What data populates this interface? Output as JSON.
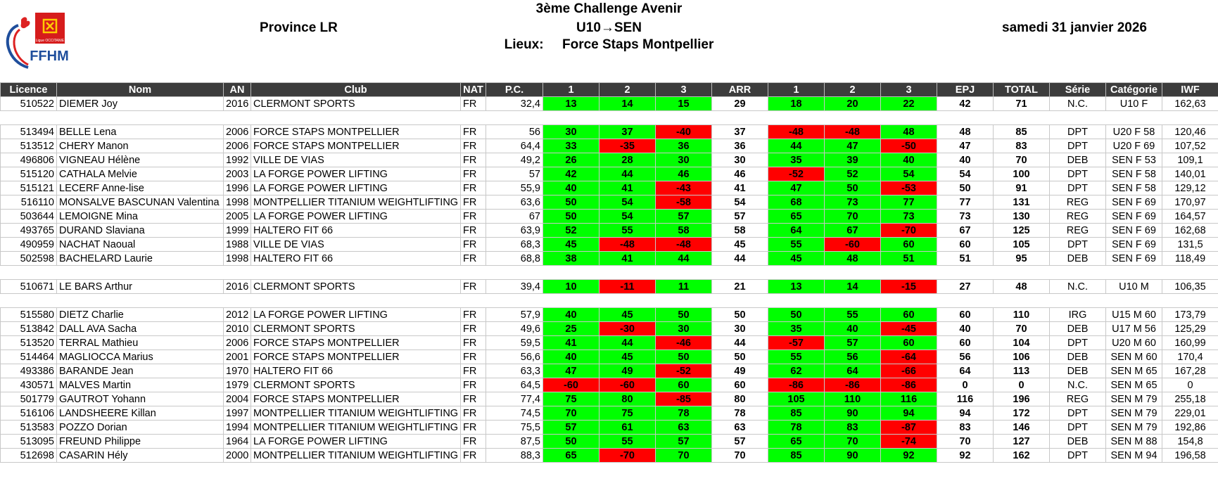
{
  "header": {
    "title": "3ème Challenge Avenir",
    "category_range": "U10→SEN",
    "location_label": "Lieux:",
    "location": "Force Staps Montpellier",
    "province": "Province LR",
    "date": "samedi 31 janvier 2026",
    "logo_text": "FFHM",
    "logo_sub": "Ligue OCCITANIE"
  },
  "columns": [
    "Licence",
    "Nom",
    "AN",
    "Club",
    "NAT",
    "P.C.",
    "1",
    "2",
    "3",
    "ARR",
    "1",
    "2",
    "3",
    "EPJ",
    "TOTAL",
    "Série",
    "Catégorie",
    "IWF"
  ],
  "colors": {
    "good": "#00ff00",
    "fail": "#ff0000",
    "header_bg": "#3c3c3c"
  },
  "rows": [
    {
      "lic": "510522",
      "nom": "DIEMER Joy",
      "an": "2016",
      "club": "CLERMONT SPORTS",
      "nat": "FR",
      "pc": "32,4",
      "a": [
        "13",
        "14",
        "15"
      ],
      "arr": "29",
      "e": [
        "18",
        "20",
        "22"
      ],
      "epj": "42",
      "total": "71",
      "serie": "N.C.",
      "cat": "U10 F",
      "iwf": "162,63"
    },
    null,
    {
      "lic": "513494",
      "nom": "BELLE Lena",
      "an": "2006",
      "club": "FORCE STAPS MONTPELLIER",
      "nat": "FR",
      "pc": "56",
      "a": [
        "30",
        "37",
        "-40"
      ],
      "arr": "37",
      "e": [
        "-48",
        "-48",
        "48"
      ],
      "epj": "48",
      "total": "85",
      "serie": "DPT",
      "cat": "U20 F 58",
      "iwf": "120,46"
    },
    {
      "lic": "513512",
      "nom": "CHERY Manon",
      "an": "2006",
      "club": "FORCE STAPS MONTPELLIER",
      "nat": "FR",
      "pc": "64,4",
      "a": [
        "33",
        "-35",
        "36"
      ],
      "arr": "36",
      "e": [
        "44",
        "47",
        "-50"
      ],
      "epj": "47",
      "total": "83",
      "serie": "DPT",
      "cat": "U20 F 69",
      "iwf": "107,52"
    },
    {
      "lic": "496806",
      "nom": "VIGNEAU Hélène",
      "an": "1992",
      "club": "VILLE DE VIAS",
      "nat": "FR",
      "pc": "49,2",
      "a": [
        "26",
        "28",
        "30"
      ],
      "arr": "30",
      "e": [
        "35",
        "39",
        "40"
      ],
      "epj": "40",
      "total": "70",
      "serie": "DEB",
      "cat": "SEN F 53",
      "iwf": "109,1"
    },
    {
      "lic": "515120",
      "nom": "CATHALA Melvie",
      "an": "2003",
      "club": "LA FORGE POWER LIFTING",
      "nat": "FR",
      "pc": "57",
      "a": [
        "42",
        "44",
        "46"
      ],
      "arr": "46",
      "e": [
        "-52",
        "52",
        "54"
      ],
      "epj": "54",
      "total": "100",
      "serie": "DPT",
      "cat": "SEN F 58",
      "iwf": "140,01"
    },
    {
      "lic": "515121",
      "nom": "LECERF Anne-lise",
      "an": "1996",
      "club": "LA FORGE POWER LIFTING",
      "nat": "FR",
      "pc": "55,9",
      "a": [
        "40",
        "41",
        "-43"
      ],
      "arr": "41",
      "e": [
        "47",
        "50",
        "-53"
      ],
      "epj": "50",
      "total": "91",
      "serie": "DPT",
      "cat": "SEN F 58",
      "iwf": "129,12"
    },
    {
      "lic": "516110",
      "nom": "MONSALVE BASCUNAN Valentina",
      "an": "1998",
      "club": "MONTPELLIER TITANIUM WEIGHTLIFTING",
      "nat": "FR",
      "pc": "63,6",
      "a": [
        "50",
        "54",
        "-58"
      ],
      "arr": "54",
      "e": [
        "68",
        "73",
        "77"
      ],
      "epj": "77",
      "total": "131",
      "serie": "REG",
      "cat": "SEN F 69",
      "iwf": "170,97"
    },
    {
      "lic": "503644",
      "nom": "LEMOIGNE Mina",
      "an": "2005",
      "club": "LA FORGE POWER LIFTING",
      "nat": "FR",
      "pc": "67",
      "a": [
        "50",
        "54",
        "57"
      ],
      "arr": "57",
      "e": [
        "65",
        "70",
        "73"
      ],
      "epj": "73",
      "total": "130",
      "serie": "REG",
      "cat": "SEN F 69",
      "iwf": "164,57"
    },
    {
      "lic": "493765",
      "nom": "DURAND Slaviana",
      "an": "1999",
      "club": "HALTERO FIT 66",
      "nat": "FR",
      "pc": "63,9",
      "a": [
        "52",
        "55",
        "58"
      ],
      "arr": "58",
      "e": [
        "64",
        "67",
        "-70"
      ],
      "epj": "67",
      "total": "125",
      "serie": "REG",
      "cat": "SEN F 69",
      "iwf": "162,68"
    },
    {
      "lic": "490959",
      "nom": "NACHAT Naoual",
      "an": "1988",
      "club": "VILLE DE VIAS",
      "nat": "FR",
      "pc": "68,3",
      "a": [
        "45",
        "-48",
        "-48"
      ],
      "arr": "45",
      "e": [
        "55",
        "-60",
        "60"
      ],
      "epj": "60",
      "total": "105",
      "serie": "DPT",
      "cat": "SEN F 69",
      "iwf": "131,5"
    },
    {
      "lic": "502598",
      "nom": "BACHELARD Laurie",
      "an": "1998",
      "club": "HALTERO FIT 66",
      "nat": "FR",
      "pc": "68,8",
      "a": [
        "38",
        "41",
        "44"
      ],
      "arr": "44",
      "e": [
        "45",
        "48",
        "51"
      ],
      "epj": "51",
      "total": "95",
      "serie": "DEB",
      "cat": "SEN F 69",
      "iwf": "118,49"
    },
    null,
    {
      "lic": "510671",
      "nom": "LE BARS Arthur",
      "an": "2016",
      "club": "CLERMONT SPORTS",
      "nat": "FR",
      "pc": "39,4",
      "a": [
        "10",
        "-11",
        "11"
      ],
      "arr": "21",
      "e": [
        "13",
        "14",
        "-15"
      ],
      "epj": "27",
      "total": "48",
      "serie": "N.C.",
      "cat": "U10 M",
      "iwf": "106,35"
    },
    null,
    {
      "lic": "515580",
      "nom": "DIETZ Charlie",
      "an": "2012",
      "club": "LA FORGE POWER LIFTING",
      "nat": "FR",
      "pc": "57,9",
      "a": [
        "40",
        "45",
        "50"
      ],
      "arr": "50",
      "e": [
        "50",
        "55",
        "60"
      ],
      "epj": "60",
      "total": "110",
      "serie": "IRG",
      "cat": "U15 M 60",
      "iwf": "173,79"
    },
    {
      "lic": "513842",
      "nom": "DALL AVA Sacha",
      "an": "2010",
      "club": "CLERMONT SPORTS",
      "nat": "FR",
      "pc": "49,6",
      "a": [
        "25",
        "-30",
        "30"
      ],
      "arr": "30",
      "e": [
        "35",
        "40",
        "-45"
      ],
      "epj": "40",
      "total": "70",
      "serie": "DEB",
      "cat": "U17 M 56",
      "iwf": "125,29"
    },
    {
      "lic": "513520",
      "nom": "TERRAL Mathieu",
      "an": "2006",
      "club": "FORCE STAPS MONTPELLIER",
      "nat": "FR",
      "pc": "59,5",
      "a": [
        "41",
        "44",
        "-46"
      ],
      "arr": "44",
      "e": [
        "-57",
        "57",
        "60"
      ],
      "epj": "60",
      "total": "104",
      "serie": "DPT",
      "cat": "U20 M 60",
      "iwf": "160,99"
    },
    {
      "lic": "514464",
      "nom": "MAGLIOCCA Marius",
      "an": "2001",
      "club": "FORCE STAPS MONTPELLIER",
      "nat": "FR",
      "pc": "56,6",
      "a": [
        "40",
        "45",
        "50"
      ],
      "arr": "50",
      "e": [
        "55",
        "56",
        "-64"
      ],
      "epj": "56",
      "total": "106",
      "serie": "DEB",
      "cat": "SEN M 60",
      "iwf": "170,4"
    },
    {
      "lic": "493386",
      "nom": "BARANDE Jean",
      "an": "1970",
      "club": "HALTERO FIT 66",
      "nat": "FR",
      "pc": "63,3",
      "a": [
        "47",
        "49",
        "-52"
      ],
      "arr": "49",
      "e": [
        "62",
        "64",
        "-66"
      ],
      "epj": "64",
      "total": "113",
      "serie": "DEB",
      "cat": "SEN M 65",
      "iwf": "167,28"
    },
    {
      "lic": "430571",
      "nom": "MALVES Martin",
      "an": "1979",
      "club": "CLERMONT SPORTS",
      "nat": "FR",
      "pc": "64,5",
      "a": [
        "-60",
        "-60",
        "60"
      ],
      "arr": "60",
      "e": [
        "-86",
        "-86",
        "-86"
      ],
      "epj": "0",
      "total": "0",
      "serie": "N.C.",
      "cat": "SEN M 65",
      "iwf": "0"
    },
    {
      "lic": "501779",
      "nom": "GAUTROT Yohann",
      "an": "2004",
      "club": "FORCE STAPS MONTPELLIER",
      "nat": "FR",
      "pc": "77,4",
      "a": [
        "75",
        "80",
        "-85"
      ],
      "arr": "80",
      "e": [
        "105",
        "110",
        "116"
      ],
      "epj": "116",
      "total": "196",
      "serie": "REG",
      "cat": "SEN M 79",
      "iwf": "255,18"
    },
    {
      "lic": "516106",
      "nom": "LANDSHEERE Killan",
      "an": "1997",
      "club": "MONTPELLIER TITANIUM WEIGHTLIFTING",
      "nat": "FR",
      "pc": "74,5",
      "a": [
        "70",
        "75",
        "78"
      ],
      "arr": "78",
      "e": [
        "85",
        "90",
        "94"
      ],
      "epj": "94",
      "total": "172",
      "serie": "DPT",
      "cat": "SEN M 79",
      "iwf": "229,01"
    },
    {
      "lic": "513583",
      "nom": "POZZO Dorian",
      "an": "1994",
      "club": "MONTPELLIER TITANIUM WEIGHTLIFTING",
      "nat": "FR",
      "pc": "75,5",
      "a": [
        "57",
        "61",
        "63"
      ],
      "arr": "63",
      "e": [
        "78",
        "83",
        "-87"
      ],
      "epj": "83",
      "total": "146",
      "serie": "DPT",
      "cat": "SEN M 79",
      "iwf": "192,86"
    },
    {
      "lic": "513095",
      "nom": "FREUND Philippe",
      "an": "1964",
      "club": "LA FORGE POWER LIFTING",
      "nat": "FR",
      "pc": "87,5",
      "a": [
        "50",
        "55",
        "57"
      ],
      "arr": "57",
      "e": [
        "65",
        "70",
        "-74"
      ],
      "epj": "70",
      "total": "127",
      "serie": "DEB",
      "cat": "SEN M 88",
      "iwf": "154,8"
    },
    {
      "lic": "512698",
      "nom": "CASARIN Hély",
      "an": "2000",
      "club": "MONTPELLIER TITANIUM WEIGHTLIFTING",
      "nat": "FR",
      "pc": "88,3",
      "a": [
        "65",
        "-70",
        "70"
      ],
      "arr": "70",
      "e": [
        "85",
        "90",
        "92"
      ],
      "epj": "92",
      "total": "162",
      "serie": "DPT",
      "cat": "SEN M 94",
      "iwf": "196,58"
    }
  ]
}
